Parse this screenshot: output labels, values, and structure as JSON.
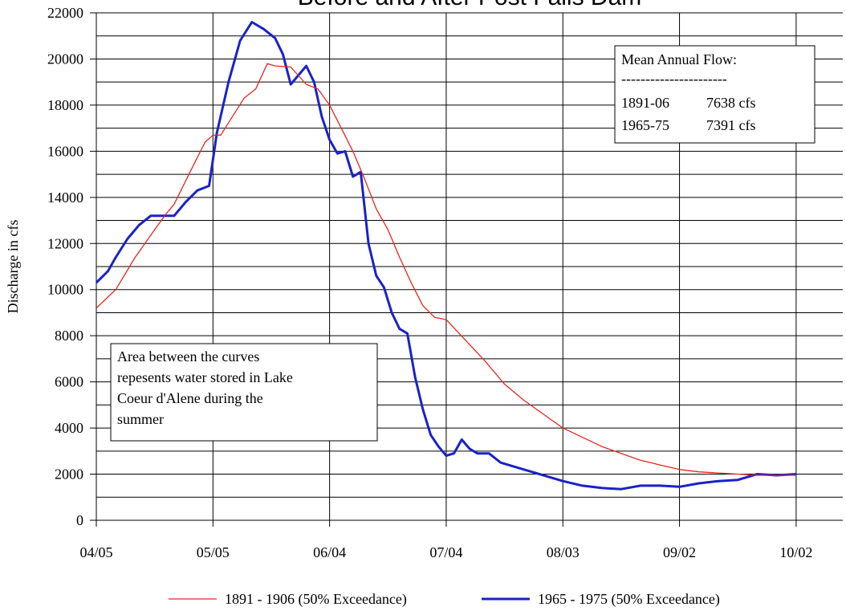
{
  "chart_data": {
    "type": "line",
    "title": "Before and After Post Falls Dam",
    "y_label": "Discharge in cfs",
    "xlim": [
      0,
      192
    ],
    "xticks": [
      {
        "value": 0,
        "label": "04/05"
      },
      {
        "value": 30,
        "label": "05/05"
      },
      {
        "value": 60,
        "label": "06/04"
      },
      {
        "value": 90,
        "label": "07/04"
      },
      {
        "value": 120,
        "label": "08/03"
      },
      {
        "value": 150,
        "label": "09/02"
      },
      {
        "value": 180,
        "label": "10/02"
      }
    ],
    "ylim": [
      0,
      22000
    ],
    "yticks": [
      0,
      2000,
      4000,
      6000,
      8000,
      10000,
      12000,
      14000,
      16000,
      18000,
      20000,
      22000
    ],
    "y_minor_grid": [
      1000,
      3000,
      5000,
      7000,
      9000,
      11000,
      13000,
      15000,
      17000,
      19000,
      21000
    ],
    "grid": true,
    "series": [
      {
        "name": "1891 - 1906 (50% Exceedance)",
        "color": "#e8261e",
        "width": 1.3,
        "x": [
          0,
          5,
          10,
          15,
          18,
          20,
          25,
          28,
          30,
          32,
          35,
          38,
          41,
          44,
          46,
          50,
          54,
          57,
          60,
          63,
          66,
          69,
          72,
          75,
          78,
          81,
          84,
          87,
          90,
          95,
          100,
          105,
          110,
          115,
          120,
          125,
          130,
          135,
          140,
          145,
          150,
          155,
          160,
          165,
          170,
          175,
          180
        ],
        "values": [
          9200,
          10000,
          11400,
          12600,
          13300,
          13700,
          15400,
          16400,
          16700,
          16700,
          17500,
          18300,
          18700,
          19800,
          19700,
          19650,
          18900,
          18700,
          18000,
          17000,
          16000,
          14800,
          13500,
          12600,
          11400,
          10300,
          9300,
          8800,
          8700,
          7800,
          6900,
          5900,
          5200,
          4600,
          4000,
          3600,
          3200,
          2900,
          2600,
          2400,
          2200,
          2100,
          2050,
          2000,
          1950,
          1950,
          1950
        ]
      },
      {
        "name": "1965 - 1975 (50% Exceedance)",
        "color": "#1a22c8",
        "width": 3,
        "x": [
          0,
          3,
          5,
          8,
          11,
          14,
          17,
          20,
          23,
          26,
          29,
          31,
          34,
          37,
          40,
          43,
          46,
          48,
          50,
          52,
          54,
          56,
          58,
          60,
          62,
          64,
          66,
          68,
          70,
          72,
          74,
          76,
          78,
          80,
          82,
          84,
          86,
          88,
          90,
          92,
          94,
          96,
          98,
          101,
          104,
          108,
          112,
          116,
          120,
          125,
          130,
          135,
          140,
          145,
          150,
          155,
          160,
          165,
          170,
          175,
          180
        ],
        "values": [
          10300,
          10800,
          11400,
          12200,
          12800,
          13200,
          13200,
          13200,
          13800,
          14300,
          14500,
          16800,
          19000,
          20800,
          21600,
          21300,
          20900,
          20200,
          18900,
          19300,
          19700,
          19000,
          17500,
          16500,
          15900,
          16000,
          14900,
          15100,
          12000,
          10600,
          10100,
          9000,
          8300,
          8100,
          6200,
          4800,
          3700,
          3200,
          2800,
          2900,
          3500,
          3100,
          2900,
          2900,
          2500,
          2300,
          2100,
          1900,
          1700,
          1500,
          1400,
          1350,
          1500,
          1500,
          1450,
          1600,
          1700,
          1750,
          2000,
          1950,
          2000
        ]
      }
    ],
    "annotations": [
      {
        "lines": [
          "Mean Annual Flow:",
          "----------------------",
          "1891-06",
          "7638 cfs",
          "1965-75",
          "7391 cfs"
        ]
      },
      {
        "lines": [
          "Area between the curves",
          "repesents water stored in Lake",
          "Coeur d'Alene during the",
          "summer"
        ]
      }
    ]
  }
}
